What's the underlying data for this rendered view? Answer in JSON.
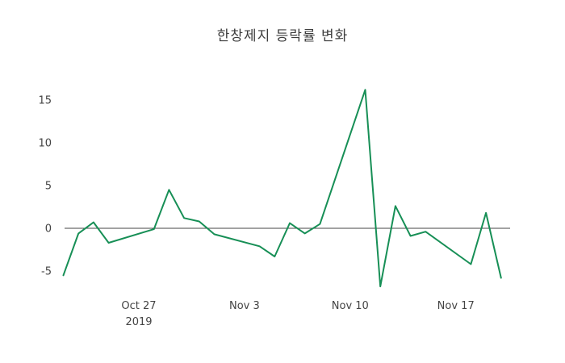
{
  "title": "한창제지 등락률 변화",
  "colors": {
    "line": "#178f56",
    "zero_line": "#444444",
    "text": "#444444",
    "background": "#ffffff"
  },
  "chart_data": {
    "type": "line",
    "title": "한창제지 등락률 변화",
    "series_name": "등락률",
    "x": [
      "2019-10-22",
      "2019-10-23",
      "2019-10-24",
      "2019-10-25",
      "2019-10-28",
      "2019-10-29",
      "2019-10-30",
      "2019-10-31",
      "2019-11-01",
      "2019-11-04",
      "2019-11-05",
      "2019-11-06",
      "2019-11-07",
      "2019-11-08",
      "2019-11-11",
      "2019-11-12",
      "2019-11-13",
      "2019-11-14",
      "2019-11-15",
      "2019-11-18",
      "2019-11-19",
      "2019-11-20"
    ],
    "y": [
      -5.5,
      -0.6,
      0.7,
      -1.7,
      -0.1,
      4.5,
      1.2,
      0.8,
      -0.7,
      -2.1,
      -3.3,
      0.6,
      -0.6,
      0.5,
      16.2,
      -6.8,
      2.6,
      -0.9,
      -0.4,
      -4.2,
      1.8,
      -5.8
    ],
    "x_tick_dates": [
      "2019-10-27",
      "2019-11-03",
      "2019-11-10",
      "2019-11-17"
    ],
    "x_tick_labels": [
      "Oct 27",
      "Nov 3",
      "Nov 10",
      "Nov 17"
    ],
    "x_year_label": "2019",
    "y_ticks": [
      15,
      10,
      5,
      0,
      -5
    ],
    "y_tick_labels": [
      "15",
      "10",
      "5",
      "0",
      "-5"
    ],
    "ylim": [
      -7.5,
      17.8
    ],
    "grid": false,
    "legend": false,
    "line_color": "#178f56",
    "zero_line": true
  }
}
